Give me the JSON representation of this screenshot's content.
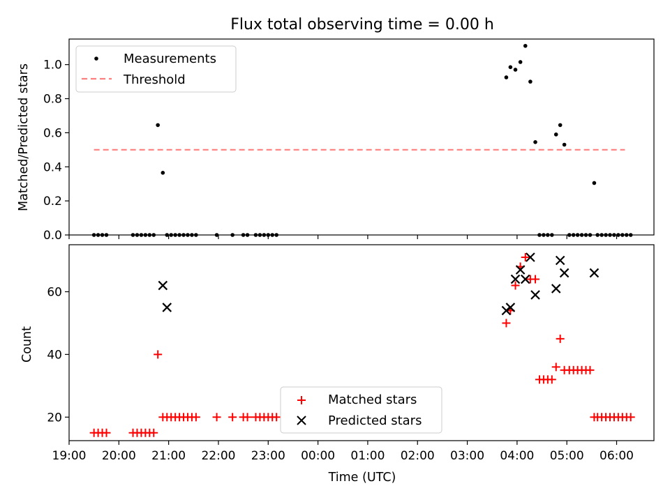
{
  "title": "Flux total observing time = 0.00 h",
  "xlabel": "Time (UTC)",
  "chart_data": [
    {
      "type": "scatter",
      "ylabel": "Matched/Predicted stars",
      "xlim": [
        "19:00",
        "06:45"
      ],
      "ylim": [
        0,
        1.15
      ],
      "yticks": [
        0.0,
        0.2,
        0.4,
        0.6,
        0.8,
        1.0
      ],
      "grid": false,
      "legend_position": "top-left",
      "series": [
        {
          "name": "Measurements",
          "marker": "dot",
          "color": "#000000",
          "x": [
            "19:30",
            "19:35",
            "19:40",
            "19:45",
            "20:17",
            "20:22",
            "20:27",
            "20:32",
            "20:37",
            "20:42",
            "20:47",
            "20:53",
            "20:58",
            "21:03",
            "21:08",
            "21:13",
            "21:18",
            "21:23",
            "21:28",
            "21:33",
            "21:58",
            "22:17",
            "22:30",
            "22:35",
            "22:45",
            "22:50",
            "22:55",
            "23:00",
            "23:05",
            "23:10",
            "03:47",
            "03:52",
            "03:58",
            "04:04",
            "04:10",
            "04:16",
            "04:22",
            "04:27",
            "04:32",
            "04:37",
            "04:42",
            "04:47",
            "04:52",
            "04:57",
            "05:03",
            "05:08",
            "05:13",
            "05:18",
            "05:23",
            "05:28",
            "05:33",
            "05:37",
            "05:42",
            "05:47",
            "05:52",
            "05:57",
            "06:02",
            "06:07",
            "06:12",
            "06:17"
          ],
          "y": [
            0,
            0,
            0,
            0,
            0,
            0,
            0,
            0,
            0,
            0,
            0.645,
            0.365,
            0,
            0,
            0,
            0,
            0,
            0,
            0,
            0,
            0,
            0,
            0,
            0,
            0,
            0,
            0,
            0,
            0,
            0,
            0.925,
            0.985,
            0.97,
            1.015,
            1.11,
            0.9,
            0.545,
            0,
            0,
            0,
            0,
            0.59,
            0.645,
            0.53,
            0,
            0,
            0,
            0,
            0,
            0,
            0.305,
            0,
            0,
            0,
            0,
            0,
            0,
            0,
            0,
            0
          ]
        },
        {
          "name": "Threshold",
          "style": "dashed",
          "color": "#ff7f7f",
          "x": [
            "19:30",
            "06:10"
          ],
          "y": [
            0.5,
            0.5
          ]
        }
      ]
    },
    {
      "type": "scatter",
      "ylabel": "Count",
      "xlim": [
        "19:00",
        "06:45"
      ],
      "ylim": [
        12.5,
        75
      ],
      "yticks": [
        20,
        40,
        60
      ],
      "xticks": [
        "19:00",
        "20:00",
        "21:00",
        "22:00",
        "23:00",
        "00:00",
        "01:00",
        "02:00",
        "03:00",
        "04:00",
        "05:00",
        "06:00"
      ],
      "grid": false,
      "legend_position": "bottom-center",
      "series": [
        {
          "name": "Matched stars",
          "marker": "plus",
          "color": "#ff0000",
          "x": [
            "19:30",
            "19:35",
            "19:40",
            "19:45",
            "20:17",
            "20:22",
            "20:27",
            "20:32",
            "20:37",
            "20:42",
            "20:47",
            "20:53",
            "20:58",
            "21:03",
            "21:08",
            "21:13",
            "21:18",
            "21:23",
            "21:28",
            "21:33",
            "21:58",
            "22:17",
            "22:30",
            "22:35",
            "22:45",
            "22:50",
            "22:55",
            "23:00",
            "23:05",
            "23:10",
            "03:47",
            "03:52",
            "03:58",
            "04:04",
            "04:10",
            "04:16",
            "04:22",
            "04:27",
            "04:32",
            "04:37",
            "04:42",
            "04:47",
            "04:52",
            "04:57",
            "05:03",
            "05:08",
            "05:13",
            "05:18",
            "05:23",
            "05:28",
            "05:33",
            "05:37",
            "05:42",
            "05:47",
            "05:52",
            "05:57",
            "06:02",
            "06:07",
            "06:12",
            "06:17"
          ],
          "y": [
            15,
            15,
            15,
            15,
            15,
            15,
            15,
            15,
            15,
            15,
            40,
            20,
            20,
            20,
            20,
            20,
            20,
            20,
            20,
            20,
            20,
            20,
            20,
            20,
            20,
            20,
            20,
            20,
            20,
            20,
            50,
            54,
            62,
            68,
            71,
            64,
            64,
            32,
            32,
            32,
            32,
            36,
            45,
            35,
            35,
            35,
            35,
            35,
            35,
            35,
            20,
            20,
            20,
            20,
            20,
            20,
            20,
            20,
            20,
            20
          ]
        },
        {
          "name": "Predicted stars",
          "marker": "x",
          "color": "#000000",
          "x": [
            "20:53",
            "20:58",
            "03:47",
            "03:52",
            "03:58",
            "04:04",
            "04:10",
            "04:16",
            "04:22",
            "04:47",
            "04:52",
            "04:57",
            "05:33"
          ],
          "y": [
            62,
            55,
            54,
            55,
            64,
            67,
            64,
            71,
            59,
            61,
            70,
            66,
            66
          ]
        }
      ]
    }
  ]
}
